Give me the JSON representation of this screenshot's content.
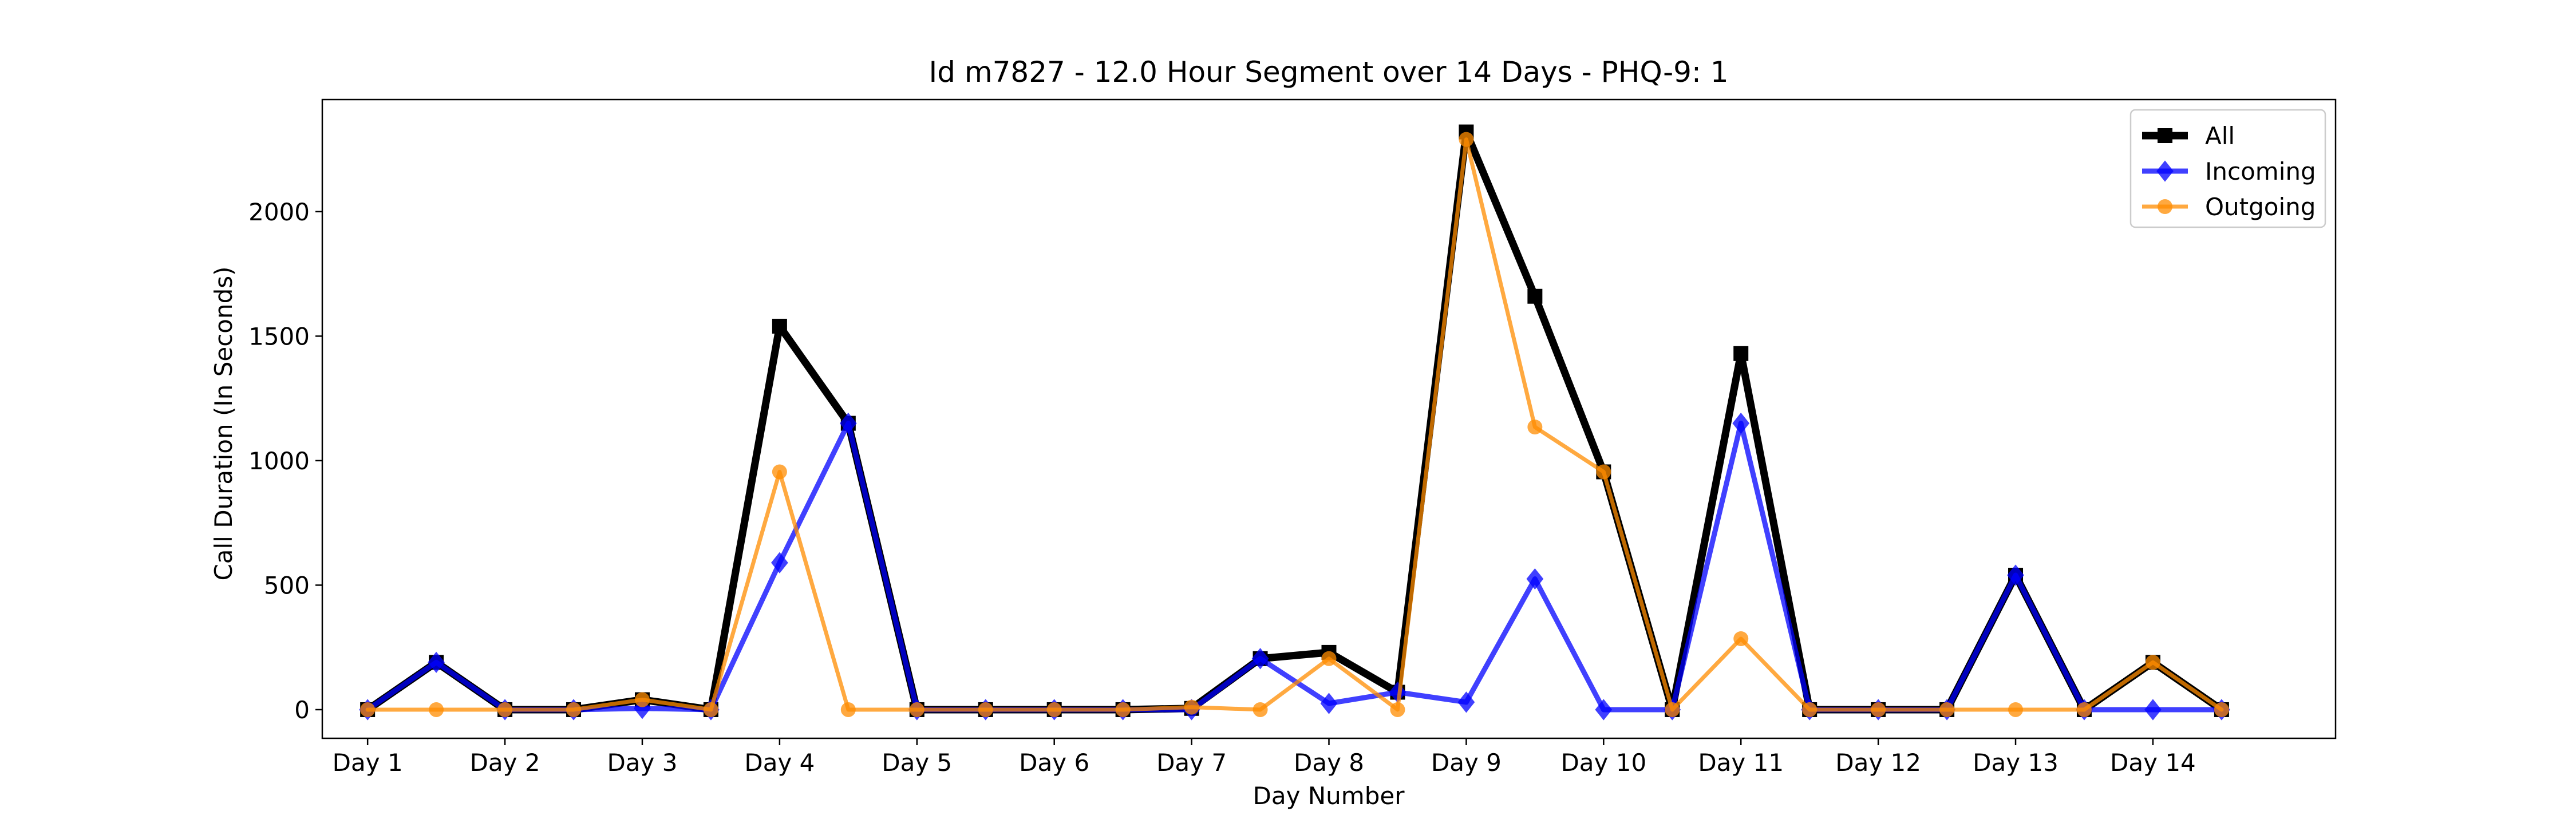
{
  "chart_data": {
    "type": "line",
    "title": "Id m7827 - 12.0 Hour Segment over 14 Days - PHQ-9: 1",
    "xlabel": "Day Number",
    "ylabel": "Call Duration (In Seconds)",
    "x": [
      1,
      1.5,
      2,
      2.5,
      3,
      3.5,
      4,
      4.5,
      5,
      5.5,
      6,
      6.5,
      7,
      7.5,
      8,
      8.5,
      9,
      9.5,
      10,
      10.5,
      11,
      11.5,
      12,
      12.5,
      13,
      13.5,
      14,
      14.5
    ],
    "x_ticks": [
      1,
      2,
      3,
      4,
      5,
      6,
      7,
      8,
      9,
      10,
      11,
      12,
      13,
      14
    ],
    "x_tick_labels": [
      "Day 1",
      "Day 2",
      "Day 3",
      "Day 4",
      "Day 5",
      "Day 6",
      "Day 7",
      "Day 8",
      "Day 9",
      "Day 10",
      "Day 11",
      "Day 12",
      "Day 13",
      "Day 14"
    ],
    "xlim": [
      0.67,
      15.33
    ],
    "y_ticks": [
      0,
      500,
      1000,
      1500,
      2000
    ],
    "ylim": [
      -115,
      2450
    ],
    "grid": false,
    "legend_position": "top-right",
    "series": [
      {
        "name": "All",
        "color": "#000000",
        "marker": "square",
        "values": [
          0,
          190,
          0,
          0,
          40,
          0,
          1540,
          1150,
          0,
          0,
          0,
          0,
          5,
          205,
          230,
          70,
          2320,
          1660,
          955,
          0,
          1430,
          0,
          0,
          0,
          540,
          0,
          190,
          0
        ]
      },
      {
        "name": "Incoming",
        "color": "#0000ff",
        "marker": "diamond",
        "values": [
          0,
          190,
          0,
          0,
          5,
          0,
          590,
          1150,
          0,
          0,
          0,
          0,
          0,
          205,
          25,
          70,
          30,
          525,
          0,
          0,
          1150,
          0,
          0,
          0,
          540,
          0,
          0,
          0
        ]
      },
      {
        "name": "Outgoing",
        "color": "#ff8c00",
        "marker": "circle",
        "values": [
          0,
          0,
          0,
          0,
          40,
          0,
          955,
          0,
          0,
          0,
          0,
          0,
          10,
          0,
          205,
          0,
          2290,
          1135,
          955,
          0,
          285,
          0,
          0,
          0,
          0,
          0,
          190,
          0
        ]
      }
    ]
  }
}
